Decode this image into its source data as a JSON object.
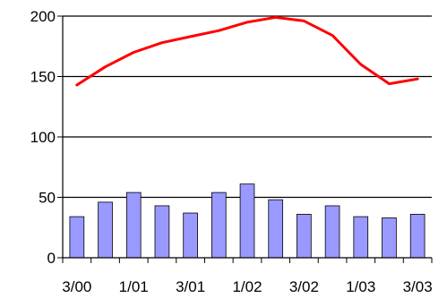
{
  "chart_data": {
    "type": "bar+line",
    "title": "",
    "xlabel": "",
    "ylabel": "",
    "ylim": [
      0,
      200
    ],
    "yticks": [
      0,
      50,
      100,
      150,
      200
    ],
    "categories": [
      "3/00",
      "",
      "1/01",
      "",
      "3/01",
      "",
      "1/02",
      "",
      "3/02",
      "",
      "1/03",
      "",
      "3/03"
    ],
    "xtick_labels": [
      "3/00",
      "1/01",
      "3/01",
      "1/02",
      "3/02",
      "1/03",
      "3/03"
    ],
    "grid": "horizontal",
    "legend": "none",
    "series": [
      {
        "kind": "bar",
        "color": "#9999ff",
        "values": [
          34,
          46,
          54,
          43,
          37,
          54,
          61,
          48,
          36,
          43,
          34,
          33,
          36
        ]
      },
      {
        "kind": "line",
        "color": "#ff0000",
        "values": [
          143,
          158,
          170,
          178,
          183,
          188,
          195,
          199,
          196,
          184,
          160,
          144,
          148
        ]
      }
    ]
  }
}
